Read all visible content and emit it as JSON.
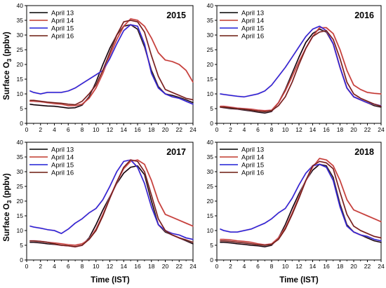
{
  "figure": {
    "ylabel_main": "Surface O",
    "ylabel_sub": "3",
    "ylabel_unit": " (ppbv)",
    "xlabel": "Time (IST)"
  },
  "legend_entries": [
    "April 13",
    "April 14",
    "April 15",
    "April 16"
  ],
  "colors": {
    "April 13": "#000000",
    "April 14": "#c0392b",
    "April 15": "#1f1fd6",
    "April 16": "#6b1a0f"
  },
  "chart_data": [
    {
      "type": "line",
      "title": "2015",
      "xlim": [
        0,
        24
      ],
      "ylim": [
        0,
        40
      ],
      "xticks": [
        0,
        2,
        4,
        6,
        8,
        10,
        12,
        14,
        16,
        18,
        20,
        22,
        24
      ],
      "yticks": [
        0,
        5,
        10,
        15,
        20,
        25,
        30,
        35,
        40
      ],
      "x": [
        0.5,
        1,
        2,
        3,
        4,
        5,
        6,
        7,
        8,
        9,
        10,
        11,
        12,
        13,
        14,
        15,
        16,
        17,
        18,
        19,
        20,
        21,
        22,
        23,
        24
      ],
      "series": [
        {
          "name": "April 13",
          "values": [
            6.5,
            6.3,
            6.1,
            5.9,
            5.8,
            5.5,
            5.2,
            5.3,
            6.2,
            9.0,
            14.0,
            20.0,
            25.5,
            30.0,
            33.0,
            33.5,
            32.0,
            26.0,
            18.0,
            12.5,
            10.0,
            9.5,
            8.8,
            8.0,
            7.0
          ]
        },
        {
          "name": "April 14",
          "values": [
            7.5,
            7.5,
            7.3,
            7.0,
            6.7,
            6.5,
            6.0,
            6.0,
            6.5,
            8.5,
            12.0,
            17.0,
            23.0,
            28.5,
            33.0,
            35.5,
            35.0,
            33.0,
            29.0,
            24.0,
            21.5,
            21.0,
            20.0,
            18.0,
            14.0
          ]
        },
        {
          "name": "April 15",
          "values": [
            11.0,
            10.5,
            10.0,
            10.5,
            10.5,
            10.5,
            11.0,
            12.0,
            13.5,
            15.0,
            16.5,
            18.0,
            22.0,
            27.0,
            31.5,
            33.5,
            33.0,
            27.0,
            17.0,
            12.0,
            10.0,
            9.0,
            8.5,
            7.5,
            6.5
          ]
        },
        {
          "name": "April 16",
          "values": [
            7.8,
            7.8,
            7.5,
            7.2,
            7.0,
            6.8,
            6.5,
            6.3,
            7.5,
            10.0,
            13.0,
            18.0,
            24.0,
            30.0,
            34.5,
            35.0,
            34.5,
            31.0,
            23.0,
            16.0,
            11.5,
            10.5,
            9.5,
            8.5,
            8.0
          ]
        }
      ]
    },
    {
      "type": "line",
      "title": "2016",
      "xlim": [
        0,
        24
      ],
      "ylim": [
        0,
        40
      ],
      "xticks": [
        0,
        2,
        4,
        6,
        8,
        10,
        12,
        14,
        16,
        18,
        20,
        22,
        24
      ],
      "yticks": [
        0,
        5,
        10,
        15,
        20,
        25,
        30,
        35,
        40
      ],
      "x": [
        0.5,
        1,
        2,
        3,
        4,
        5,
        6,
        7,
        8,
        9,
        10,
        11,
        12,
        13,
        14,
        15,
        16,
        17,
        18,
        19,
        20,
        21,
        22,
        23,
        24
      ],
      "series": [
        {
          "name": "April 13",
          "values": [
            5.5,
            5.3,
            5.0,
            4.8,
            4.5,
            4.2,
            3.8,
            3.5,
            4.0,
            7.0,
            11.5,
            17.0,
            22.5,
            27.5,
            30.5,
            32.0,
            31.0,
            27.0,
            19.0,
            12.0,
            9.0,
            8.0,
            7.0,
            6.0,
            5.5
          ]
        },
        {
          "name": "April 14",
          "values": [
            5.8,
            5.8,
            5.5,
            5.2,
            5.0,
            4.8,
            4.5,
            4.3,
            4.5,
            7.0,
            11.0,
            16.0,
            21.0,
            25.5,
            29.5,
            32.5,
            32.5,
            30.5,
            25.0,
            18.0,
            13.0,
            11.5,
            10.5,
            10.2,
            10.0
          ]
        },
        {
          "name": "April 15",
          "values": [
            10.0,
            9.8,
            9.5,
            9.2,
            9.0,
            9.5,
            10.0,
            11.0,
            13.0,
            16.0,
            19.0,
            22.5,
            26.0,
            29.5,
            32.0,
            33.0,
            31.5,
            27.0,
            19.0,
            12.0,
            9.0,
            8.0,
            7.0,
            6.5,
            6.0
          ]
        },
        {
          "name": "April 16",
          "values": [
            5.5,
            5.5,
            5.3,
            5.0,
            4.8,
            4.5,
            4.2,
            4.0,
            4.3,
            6.0,
            9.0,
            14.0,
            20.0,
            25.5,
            29.5,
            31.0,
            31.5,
            28.5,
            22.0,
            14.0,
            10.0,
            8.5,
            7.5,
            6.5,
            5.8
          ]
        }
      ]
    },
    {
      "type": "line",
      "title": "2017",
      "xlim": [
        0,
        24
      ],
      "ylim": [
        0,
        40
      ],
      "xticks": [
        0,
        2,
        4,
        6,
        8,
        10,
        12,
        14,
        16,
        18,
        20,
        22,
        24
      ],
      "yticks": [
        0,
        5,
        10,
        15,
        20,
        25,
        30,
        35,
        40
      ],
      "x": [
        0.5,
        1,
        2,
        3,
        4,
        5,
        6,
        7,
        8,
        9,
        10,
        11,
        12,
        13,
        14,
        15,
        16,
        17,
        18,
        19,
        20,
        21,
        22,
        23,
        24
      ],
      "series": [
        {
          "name": "April 13",
          "values": [
            6.0,
            6.0,
            5.8,
            5.5,
            5.3,
            5.0,
            4.8,
            4.5,
            5.0,
            7.5,
            12.0,
            17.0,
            21.5,
            26.0,
            29.5,
            31.5,
            32.0,
            29.0,
            20.0,
            12.0,
            9.5,
            8.5,
            7.5,
            6.5,
            5.5
          ]
        },
        {
          "name": "April 14",
          "values": [
            6.5,
            6.5,
            6.3,
            6.0,
            5.8,
            5.5,
            5.2,
            5.0,
            5.5,
            7.0,
            10.5,
            15.5,
            21.0,
            26.5,
            31.0,
            33.5,
            34.0,
            32.5,
            27.0,
            20.0,
            15.5,
            14.5,
            13.5,
            12.5,
            11.5
          ]
        },
        {
          "name": "April 15",
          "values": [
            11.5,
            11.2,
            10.8,
            10.3,
            10.0,
            9.0,
            10.5,
            12.5,
            14.0,
            16.0,
            17.5,
            20.5,
            25.0,
            30.0,
            33.5,
            34.0,
            31.5,
            26.0,
            18.0,
            12.0,
            10.0,
            9.0,
            8.5,
            7.5,
            7.0
          ]
        },
        {
          "name": "April 16",
          "values": [
            6.5,
            6.5,
            6.3,
            6.0,
            5.5,
            5.0,
            4.8,
            4.5,
            5.0,
            7.0,
            10.0,
            15.0,
            21.0,
            26.5,
            31.5,
            34.0,
            33.5,
            30.0,
            22.0,
            14.0,
            10.0,
            8.5,
            7.5,
            6.8,
            6.0
          ]
        }
      ]
    },
    {
      "type": "line",
      "title": "2018",
      "xlim": [
        0,
        24
      ],
      "ylim": [
        0,
        40
      ],
      "xticks": [
        0,
        2,
        4,
        6,
        8,
        10,
        12,
        14,
        16,
        18,
        20,
        22,
        24
      ],
      "yticks": [
        0,
        5,
        10,
        15,
        20,
        25,
        30,
        35,
        40
      ],
      "x": [
        0.5,
        1,
        2,
        3,
        4,
        5,
        6,
        7,
        8,
        9,
        10,
        11,
        12,
        13,
        14,
        15,
        16,
        17,
        18,
        19,
        20,
        21,
        22,
        23,
        24
      ],
      "series": [
        {
          "name": "April 13",
          "values": [
            6.0,
            6.0,
            5.8,
            5.5,
            5.3,
            5.0,
            4.8,
            4.5,
            5.0,
            7.5,
            12.0,
            17.5,
            22.5,
            27.0,
            30.5,
            32.5,
            32.0,
            28.0,
            19.0,
            12.0,
            9.5,
            8.5,
            7.5,
            6.5,
            6.0
          ]
        },
        {
          "name": "April 14",
          "values": [
            7.0,
            7.0,
            6.8,
            6.5,
            6.3,
            6.0,
            5.5,
            5.2,
            5.5,
            7.5,
            11.0,
            16.0,
            21.5,
            27.0,
            31.5,
            34.5,
            34.0,
            32.0,
            27.0,
            20.5,
            17.0,
            16.0,
            15.0,
            14.0,
            13.0
          ]
        },
        {
          "name": "April 15",
          "values": [
            10.5,
            10.0,
            9.5,
            9.5,
            10.0,
            10.5,
            11.5,
            12.5,
            14.0,
            16.0,
            17.5,
            21.0,
            25.5,
            29.5,
            32.0,
            32.5,
            31.5,
            27.0,
            18.0,
            11.5,
            9.5,
            8.5,
            8.0,
            7.0,
            6.5
          ]
        },
        {
          "name": "April 16",
          "values": [
            6.5,
            6.5,
            6.3,
            6.0,
            5.8,
            5.5,
            5.2,
            5.0,
            5.3,
            7.0,
            10.5,
            15.5,
            21.0,
            27.0,
            32.0,
            33.5,
            33.0,
            31.0,
            23.0,
            15.5,
            11.5,
            10.0,
            9.0,
            8.0,
            7.5
          ]
        }
      ]
    }
  ]
}
